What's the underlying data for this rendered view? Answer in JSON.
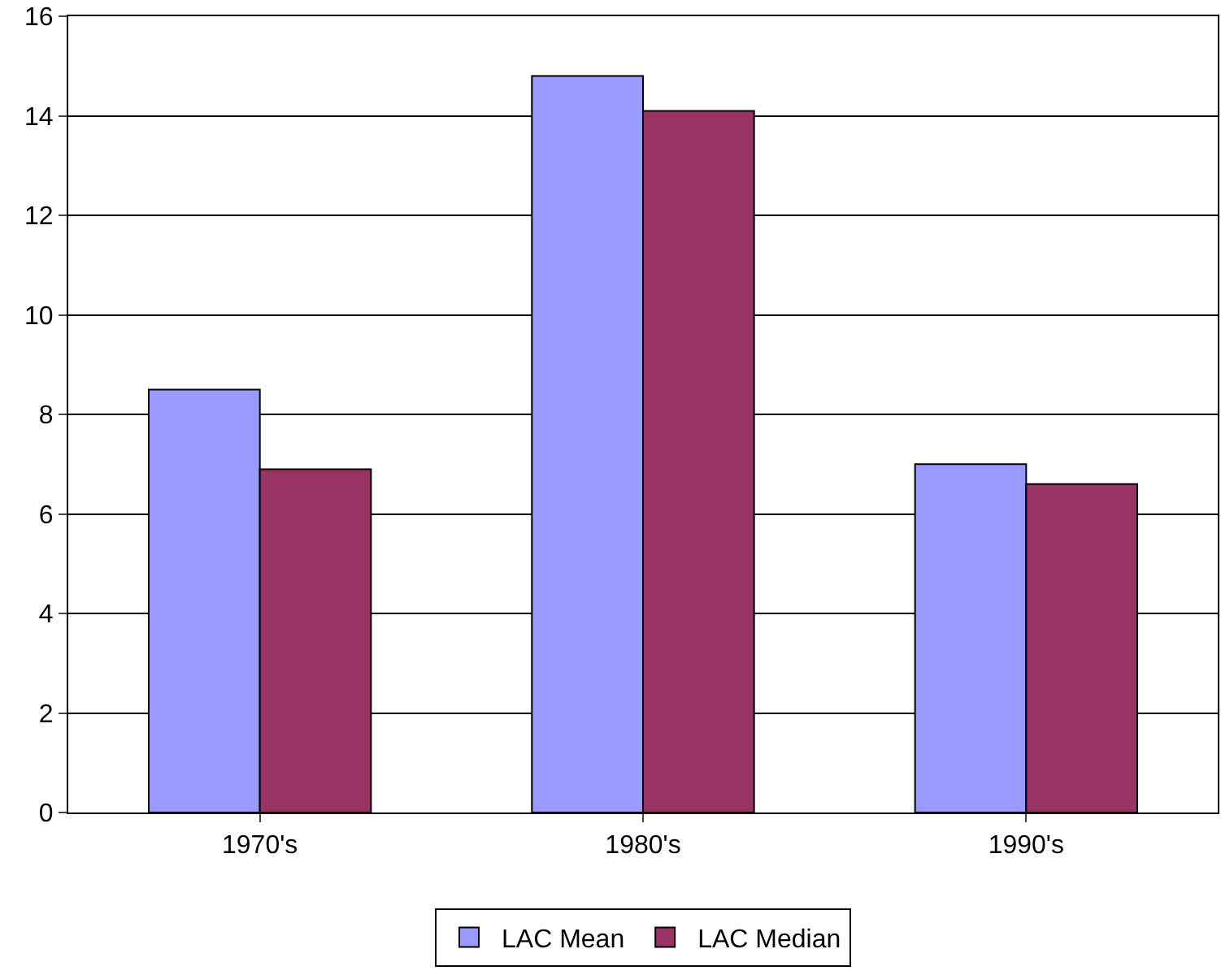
{
  "chart_data": {
    "type": "bar",
    "categories": [
      "1970's",
      "1980's",
      "1990's"
    ],
    "series": [
      {
        "name": "LAC Mean",
        "color": "#9999ff",
        "values": [
          8.5,
          14.8,
          7.0
        ]
      },
      {
        "name": "LAC Median",
        "color": "#993366",
        "values": [
          6.9,
          14.1,
          6.6
        ]
      }
    ],
    "ylim": [
      0,
      16
    ],
    "yticks": [
      0,
      2,
      4,
      6,
      8,
      10,
      12,
      14,
      16
    ],
    "grid": "y",
    "legend": "bottom"
  }
}
